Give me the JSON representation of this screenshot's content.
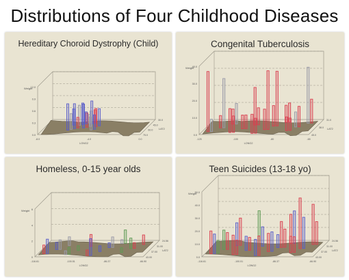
{
  "title": "Distributions of Four Childhood Diseases",
  "colors": {
    "panel_bg": "#e9e4d2",
    "map_fill": "#8a7f65",
    "bar_red": "#d94050",
    "bar_blue": "#5a5ec8",
    "bar_green": "#5f9a55",
    "bar_gray": "#9a9aa8"
  },
  "chart_data": [
    {
      "type": "bar",
      "title": "Hereditary Choroid Dystrophy (Child)",
      "axis": {
        "z_label": "Weight",
        "z_ticks": [
          "0.0",
          "0.3",
          "0.6",
          "0.9",
          "12.0"
        ],
        "x_label": "LAT2",
        "x_ticks": [
          "30.0",
          "45.0",
          "60.0",
          "75.0"
        ],
        "y_label": "LONG2",
        "y_ticks": [
          "-8.0",
          "-4.0",
          "0.0"
        ]
      },
      "values": [
        0.55,
        0.48,
        0.42,
        0.38,
        0.5,
        0.33,
        0.28,
        0.45,
        0.36,
        0.3,
        0.52,
        0.4,
        0.25,
        0.34,
        0.2,
        0.22,
        0.3,
        0.18
      ]
    },
    {
      "type": "bar",
      "title": "Congenital Tuberculosis",
      "axis": {
        "z_label": "Weight",
        "z_ticks": [
          "0.0",
          "10.0",
          "20.0",
          "30.0",
          "40.0"
        ],
        "x_label": "LAT2",
        "x_ticks": [
          "31.0",
          "38.0",
          "45.0"
        ],
        "y_label": "LONG2",
        "y_ticks": [
          "-125",
          "-100",
          "-80",
          "-65"
        ]
      },
      "values": [
        0.88,
        0.3,
        0.35,
        0.22,
        0.28,
        0.18,
        0.25,
        0.2,
        0.82,
        0.3,
        0.22,
        0.2,
        0.55,
        0.18,
        0.8,
        0.24,
        0.3,
        0.22,
        0.72,
        0.28,
        0.2,
        0.35,
        0.86,
        0.3,
        0.18,
        0.25
      ]
    },
    {
      "type": "bar",
      "title": "Homeless, 0-15 year olds",
      "axis": {
        "z_label": "Weight",
        "z_ticks": [
          "0",
          "2",
          "4",
          "6"
        ],
        "x_label": "LAT2",
        "x_ticks": [
          "24.56",
          "31.00",
          "37.00",
          "43.00"
        ],
        "y_label": "LONG2",
        "y_ticks": [
          "-116.61",
          "-100.51",
          "-86.37",
          "-66.90"
        ]
      },
      "values": [
        0.18,
        0.1,
        0.08,
        0.22,
        0.12,
        0.15,
        0.08,
        0.1,
        0.2,
        0.12,
        0.18,
        0.1,
        0.25,
        0.3,
        0.22,
        0.15,
        0.12,
        0.35,
        0.2,
        0.28
      ]
    },
    {
      "type": "bar",
      "title": "Teen Suicides (13-18 yo)",
      "axis": {
        "z_label": "Weight",
        "z_ticks": [
          "0.0",
          "10.0",
          "20.0",
          "30.0",
          "40.0",
          "50.0"
        ],
        "x_label": "LAT2",
        "x_ticks": [
          "24.56",
          "31.00",
          "37.00",
          "43.00"
        ],
        "y_label": "LONG2",
        "y_ticks": [
          "-116.61",
          "-100.51",
          "-86.37",
          "-66.90"
        ]
      },
      "values": [
        0.35,
        0.2,
        0.3,
        0.78,
        0.25,
        0.3,
        0.45,
        0.22,
        0.62,
        0.28,
        0.35,
        0.25,
        0.55,
        0.3,
        0.4,
        0.22,
        0.48,
        0.3,
        0.26,
        0.5,
        0.2,
        0.35,
        0.3,
        0.42,
        0.24,
        0.3,
        0.2,
        0.28
      ]
    }
  ]
}
